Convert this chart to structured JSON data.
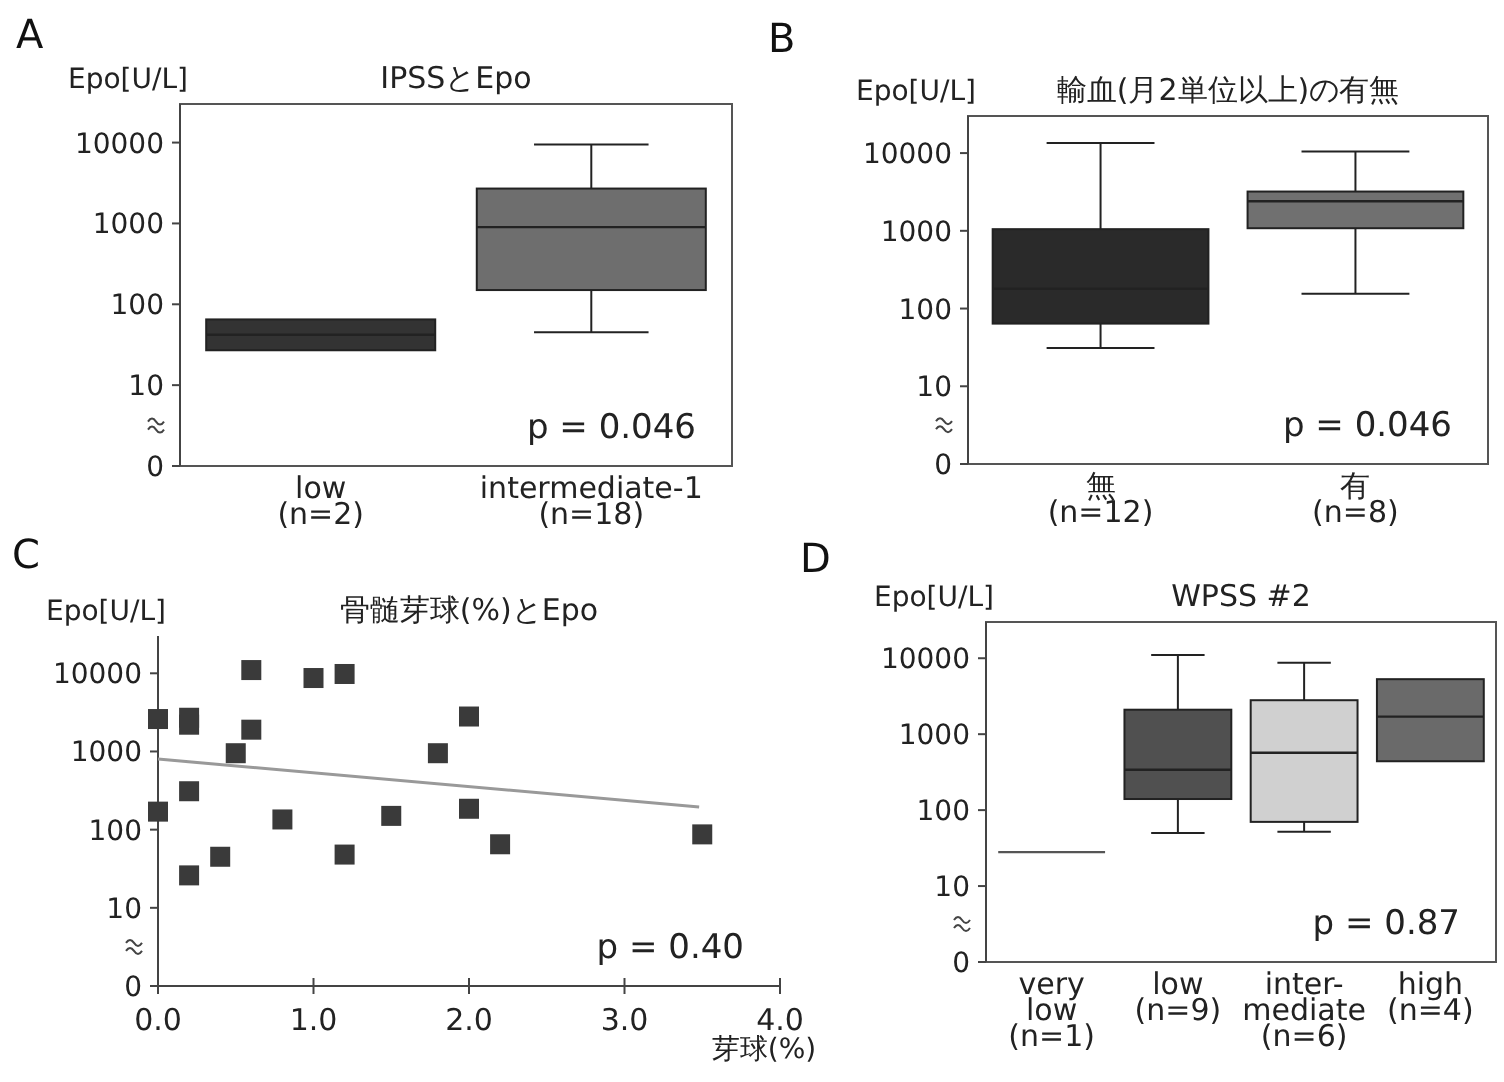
{
  "chart_data": [
    {
      "type": "box",
      "title": "IPSSとEpo",
      "ylabel": "Epo[U/L]",
      "log": true,
      "ylim": [
        0,
        30000
      ],
      "yticks": [
        0,
        10,
        100,
        1000,
        10000
      ],
      "categories": [
        "low\n(n=2)",
        "intermediate-1\n(n=18)"
      ],
      "colors": [
        "#333333",
        "#6e6e6e"
      ],
      "boxes": [
        {
          "low": 27,
          "q1": 27,
          "median": 42,
          "q3": 65,
          "high": 65
        },
        {
          "low": 45,
          "q1": 150,
          "median": 900,
          "q3": 2700,
          "high": 9500
        }
      ],
      "annotations": [
        "A",
        "p = 0.046"
      ]
    },
    {
      "type": "box",
      "title": "輸血(月2単位以上)の有無",
      "ylabel": "Epo[U/L]",
      "log": true,
      "ylim": [
        0,
        30000
      ],
      "yticks": [
        0,
        10,
        100,
        1000,
        10000
      ],
      "categories": [
        "無\n(n=12)",
        "有\n(n=8)"
      ],
      "colors": [
        "#2a2a2a",
        "#707070"
      ],
      "boxes": [
        {
          "low": 31,
          "q1": 64,
          "median": 180,
          "q3": 1050,
          "high": 13500
        },
        {
          "low": 155,
          "q1": 1080,
          "median": 2400,
          "q3": 3200,
          "high": 10500
        }
      ],
      "annotations": [
        "B",
        "p = 0.046"
      ]
    },
    {
      "type": "scatter",
      "title": "骨髄芽球(%)とEpo",
      "ylabel": "Epo[U/L]",
      "xlabel": "芽球(%)",
      "log": true,
      "ylim": [
        0,
        30000
      ],
      "yticks": [
        0,
        10,
        100,
        1000,
        10000
      ],
      "xlim": [
        0,
        4
      ],
      "xticks": [
        {
          "value": 0,
          "label": "0.0"
        },
        {
          "value": 1,
          "label": "1.0"
        },
        {
          "value": 2,
          "label": "2.0"
        },
        {
          "value": 3,
          "label": "3.0"
        },
        {
          "value": 4,
          "label": "4.0"
        }
      ],
      "marker": "square",
      "series": [
        {
          "color": "#3a3a3a",
          "x": [
            0,
            0,
            0.2,
            0.2,
            0.2,
            0.2,
            0.4,
            0.5,
            0.6,
            0.6,
            0.8,
            1.0,
            1.2,
            1.2,
            1.5,
            1.8,
            2.0,
            2.0,
            2.2,
            3.5
          ],
          "values": [
            2600,
            170,
            2700,
            2200,
            310,
            26,
            45,
            950,
            11000,
            1900,
            135,
            8700,
            9800,
            48,
            150,
            950,
            2800,
            185,
            65,
            87
          ]
        },
        {
          "type": "line",
          "marker": "none",
          "color": "#999999",
          "x": [
            0,
            3.48
          ],
          "values": [
            800,
            195
          ]
        }
      ],
      "annotations": [
        "C",
        "p = 0.40"
      ]
    },
    {
      "type": "box",
      "title": "WPSS  #2",
      "ylabel": "Epo[U/L]",
      "log": true,
      "ylim": [
        0,
        30000
      ],
      "yticks": [
        0,
        10,
        100,
        1000,
        10000
      ],
      "categories": [
        "very\nlow\n(n=1)",
        "low\n(n=9)",
        "inter-\nmediate\n(n=6)",
        "high\n(n=4)"
      ],
      "colors": [
        "#555555",
        "#505050",
        "#d0d0d0",
        "#6a6a6a"
      ],
      "boxes": [
        {
          "low": 28,
          "q1": 28,
          "median": 28,
          "q3": 28,
          "high": 28
        },
        {
          "low": 50,
          "q1": 140,
          "median": 340,
          "q3": 2100,
          "high": 11000
        },
        {
          "low": 52,
          "q1": 70,
          "median": 570,
          "q3": 2800,
          "high": 8700
        },
        {
          "low": 440,
          "q1": 440,
          "median": 1700,
          "q3": 5300,
          "high": 5300
        }
      ],
      "annotations": [
        "D",
        "p = 0.87"
      ]
    }
  ]
}
